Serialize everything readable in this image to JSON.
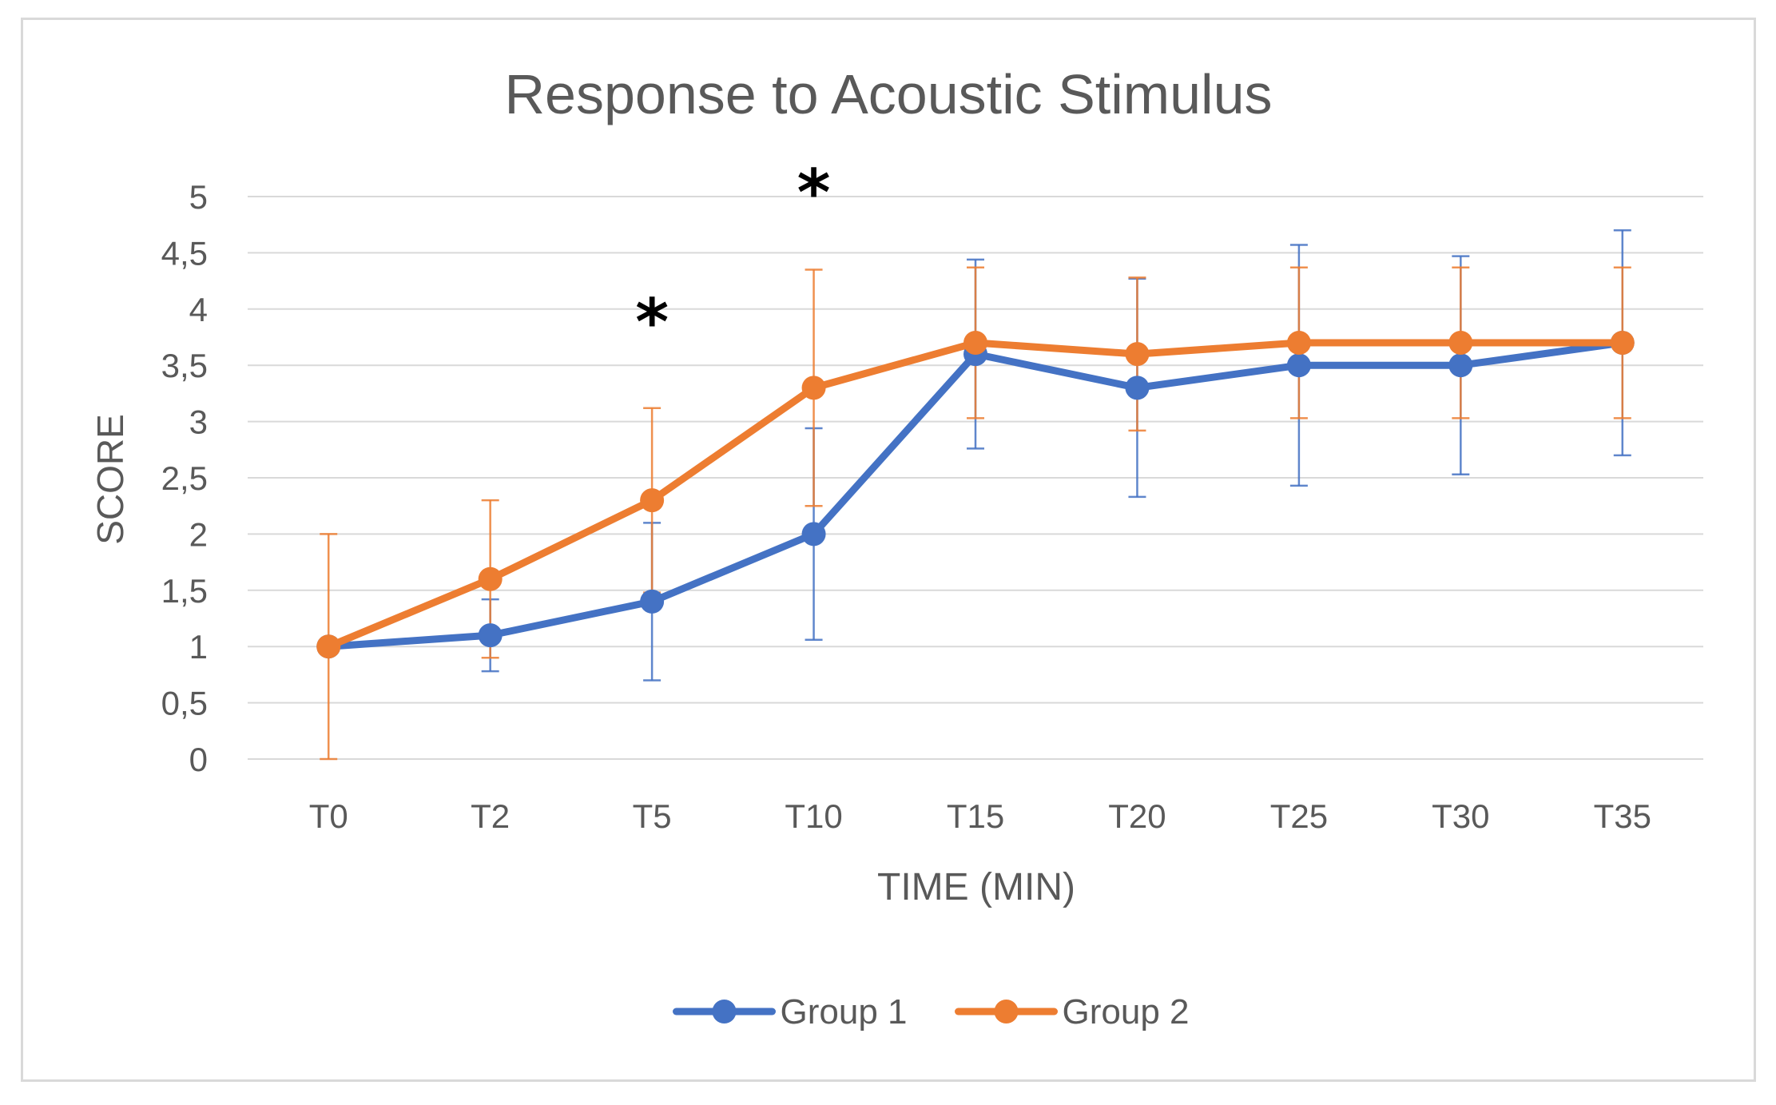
{
  "chart_data": {
    "type": "line",
    "title": "Response to Acoustic Stimulus",
    "xlabel": "TIME (MIN)",
    "ylabel": "SCORE",
    "categories": [
      "T0",
      "T2",
      "T5",
      "T10",
      "T15",
      "T20",
      "T25",
      "T30",
      "T35"
    ],
    "ylim": [
      0,
      5
    ],
    "yticks": [
      0,
      0.5,
      1,
      1.5,
      2,
      2.5,
      3,
      3.5,
      4,
      4.5,
      5
    ],
    "ytick_labels": [
      "0",
      "0,5",
      "1",
      "1,5",
      "2",
      "2,5",
      "3",
      "3,5",
      "4",
      "4,5",
      "5"
    ],
    "grid": true,
    "legend_position": "bottom",
    "series": [
      {
        "name": "Group 1",
        "color": "#4472C4",
        "values": [
          1.0,
          1.1,
          1.4,
          2.0,
          3.6,
          3.3,
          3.5,
          3.5,
          3.7
        ],
        "error": [
          0,
          0.32,
          0.7,
          0.94,
          0.84,
          0.97,
          1.07,
          0.97,
          1.0
        ]
      },
      {
        "name": "Group 2",
        "color": "#ED7D31",
        "values": [
          1.0,
          1.6,
          2.3,
          3.3,
          3.7,
          3.6,
          3.7,
          3.7,
          3.7
        ],
        "error": [
          1.0,
          0.7,
          0.82,
          1.05,
          0.67,
          0.68,
          0.67,
          0.67,
          0.67
        ]
      }
    ],
    "annotations": [
      {
        "text": "*",
        "category": "T5",
        "y": 4.0
      },
      {
        "text": "*",
        "category": "T10",
        "y": 5.15
      }
    ]
  }
}
